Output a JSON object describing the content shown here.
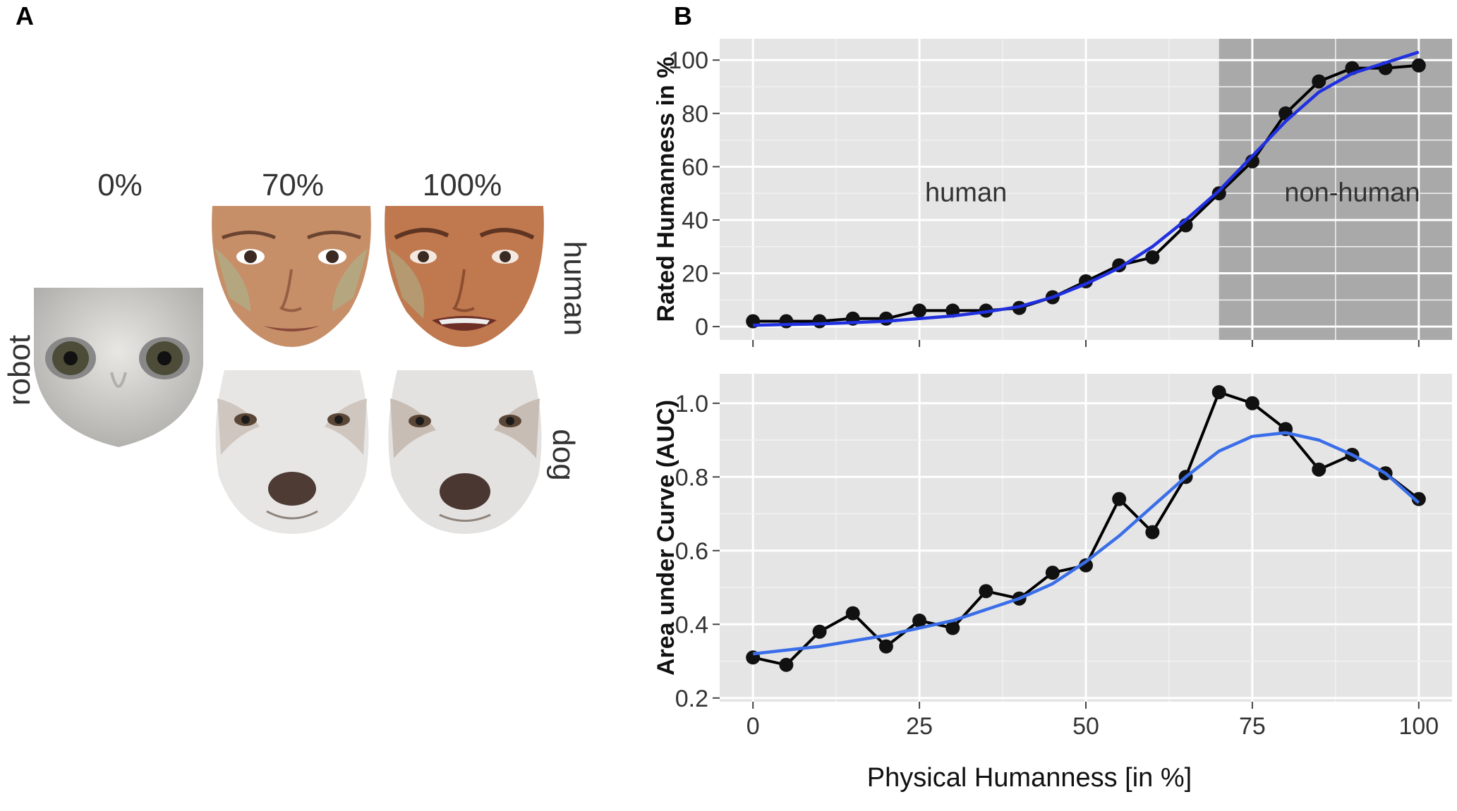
{
  "panel_a": {
    "letter": "A",
    "columns": [
      "0%",
      "70%",
      "100%"
    ],
    "row_labels": {
      "robot": "robot",
      "human": "human",
      "dog": "dog"
    },
    "colors": {
      "skin": "#c9906a",
      "skin_shadow": "#a8704f",
      "robot": "#d8d6d2",
      "dog": "#e6e4e2",
      "eye": "#3a3a2e"
    }
  },
  "panel_b": {
    "letter": "B"
  },
  "chart_data": [
    {
      "type": "line",
      "ylabel": "Rated Humanness in %",
      "ylim": [
        -5,
        108
      ],
      "xlim": [
        -5,
        105
      ],
      "yticks": [
        "0",
        "20",
        "40",
        "60",
        "80",
        "100"
      ],
      "grid": true,
      "annotations": [
        "human",
        "non-human"
      ],
      "shaded_region_x": [
        70,
        105
      ],
      "series": [
        {
          "name": "observed",
          "color": "#000000",
          "x": [
            0,
            5,
            10,
            15,
            20,
            25,
            30,
            35,
            40,
            45,
            50,
            55,
            60,
            65,
            70,
            75,
            80,
            85,
            90,
            95,
            100
          ],
          "y": [
            2,
            2,
            2,
            3,
            3,
            6,
            6,
            6,
            7,
            11,
            17,
            23,
            26,
            38,
            50,
            62,
            80,
            92,
            97,
            97,
            98
          ]
        },
        {
          "name": "fit",
          "color": "#2030e0",
          "x": [
            0,
            5,
            10,
            15,
            20,
            25,
            30,
            35,
            40,
            45,
            50,
            55,
            60,
            65,
            70,
            75,
            80,
            85,
            90,
            95,
            100
          ],
          "y": [
            0.5,
            0.8,
            1,
            1.5,
            2,
            3,
            4,
            5.5,
            7.5,
            11,
            16,
            22,
            30,
            40,
            51,
            64,
            77,
            88,
            95,
            99,
            103
          ]
        }
      ]
    },
    {
      "type": "line",
      "ylabel": "Area under Curve (AUC)",
      "xlabel": "Physical Humanness [in %]",
      "ylim": [
        0.19,
        1.08
      ],
      "xlim": [
        -5,
        105
      ],
      "xticks": [
        "0",
        "25",
        "50",
        "75",
        "100"
      ],
      "yticks": [
        "0.2",
        "0.4",
        "0.6",
        "0.8",
        "1.0"
      ],
      "grid": true,
      "series": [
        {
          "name": "observed",
          "color": "#000000",
          "x": [
            0,
            5,
            10,
            15,
            20,
            25,
            30,
            35,
            40,
            45,
            50,
            55,
            60,
            65,
            70,
            75,
            80,
            85,
            90,
            95,
            100
          ],
          "y": [
            0.31,
            0.29,
            0.38,
            0.43,
            0.34,
            0.41,
            0.39,
            0.49,
            0.47,
            0.54,
            0.56,
            0.74,
            0.65,
            0.8,
            1.03,
            1.0,
            0.93,
            0.82,
            0.86,
            0.81,
            0.74
          ]
        },
        {
          "name": "fit",
          "color": "#3a6ee8",
          "x": [
            0,
            5,
            10,
            15,
            20,
            25,
            30,
            35,
            40,
            45,
            50,
            55,
            60,
            65,
            70,
            75,
            80,
            85,
            90,
            95,
            100
          ],
          "y": [
            0.32,
            0.33,
            0.34,
            0.355,
            0.37,
            0.39,
            0.41,
            0.44,
            0.47,
            0.51,
            0.57,
            0.64,
            0.72,
            0.8,
            0.87,
            0.91,
            0.92,
            0.9,
            0.86,
            0.81,
            0.73
          ]
        }
      ]
    }
  ]
}
